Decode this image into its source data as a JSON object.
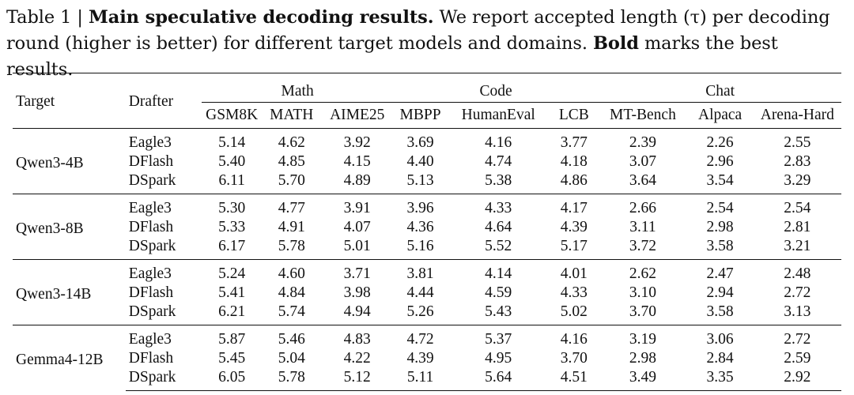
{
  "caption": {
    "label": "Table 1 |",
    "title": "Main speculative decoding results.",
    "text1": "We report accepted length (τ) per decoding",
    "text2": "round (higher is better) for different target models and domains.",
    "bold_word": "Bold",
    "text3": "marks the best results."
  },
  "table": {
    "header": {
      "target": "Target",
      "drafter": "Drafter",
      "groups": [
        "Math",
        "Code",
        "Chat"
      ],
      "metrics": [
        "GSM8K",
        "MATH",
        "AIME25",
        "MBPP",
        "HumanEval",
        "LCB",
        "MT-Bench",
        "Alpaca",
        "Arena-Hard"
      ]
    },
    "blocks": [
      {
        "target": "Qwen3-4B",
        "rows": [
          {
            "drafter": "Eagle3",
            "values": [
              "5.14",
              "4.62",
              "3.92",
              "3.69",
              "4.16",
              "3.77",
              "2.39",
              "2.26",
              "2.55"
            ]
          },
          {
            "drafter": "DFlash",
            "values": [
              "5.40",
              "4.85",
              "4.15",
              "4.40",
              "4.74",
              "4.18",
              "3.07",
              "2.96",
              "2.83"
            ]
          },
          {
            "drafter": "DSpark",
            "values": [
              "6.11",
              "5.70",
              "4.89",
              "5.13",
              "5.38",
              "4.86",
              "3.64",
              "3.54",
              "3.29"
            ]
          }
        ]
      },
      {
        "target": "Qwen3-8B",
        "rows": [
          {
            "drafter": "Eagle3",
            "values": [
              "5.30",
              "4.77",
              "3.91",
              "3.96",
              "4.33",
              "4.17",
              "2.66",
              "2.54",
              "2.54"
            ]
          },
          {
            "drafter": "DFlash",
            "values": [
              "5.33",
              "4.91",
              "4.07",
              "4.36",
              "4.64",
              "4.39",
              "3.11",
              "2.98",
              "2.81"
            ]
          },
          {
            "drafter": "DSpark",
            "values": [
              "6.17",
              "5.78",
              "5.01",
              "5.16",
              "5.52",
              "5.17",
              "3.72",
              "3.58",
              "3.21"
            ]
          }
        ]
      },
      {
        "target": "Qwen3-14B",
        "rows": [
          {
            "drafter": "Eagle3",
            "values": [
              "5.24",
              "4.60",
              "3.71",
              "3.81",
              "4.14",
              "4.01",
              "2.62",
              "2.47",
              "2.48"
            ]
          },
          {
            "drafter": "DFlash",
            "values": [
              "5.41",
              "4.84",
              "3.98",
              "4.44",
              "4.59",
              "4.33",
              "3.10",
              "2.94",
              "2.72"
            ]
          },
          {
            "drafter": "DSpark",
            "values": [
              "6.21",
              "5.74",
              "4.94",
              "5.26",
              "5.43",
              "5.02",
              "3.70",
              "3.58",
              "3.13"
            ]
          }
        ]
      },
      {
        "target": "Gemma4-12B",
        "rows": [
          {
            "drafter": "Eagle3",
            "values": [
              "5.87",
              "5.46",
              "4.83",
              "4.72",
              "5.37",
              "4.16",
              "3.19",
              "3.06",
              "2.72"
            ]
          },
          {
            "drafter": "DFlash",
            "values": [
              "5.45",
              "5.04",
              "4.22",
              "4.39",
              "4.95",
              "3.70",
              "2.98",
              "2.84",
              "2.59"
            ]
          },
          {
            "drafter": "DSpark",
            "values": [
              "6.05",
              "5.78",
              "5.12",
              "5.11",
              "5.64",
              "4.51",
              "3.49",
              "3.35",
              "2.92"
            ]
          }
        ]
      }
    ],
    "best_row_index": 2
  }
}
